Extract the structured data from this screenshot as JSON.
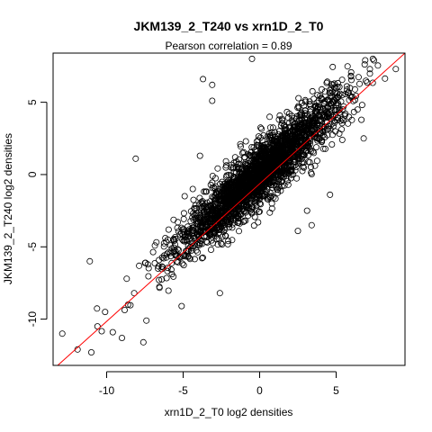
{
  "chart_data": {
    "type": "scatter",
    "title": "JKM139_2_T240 vs xrn1D_2_T0",
    "subtitle": "Pearson correlation =  0.89",
    "xlabel": "xrn1D_2_T0 log2 densities",
    "ylabel": "JKM139_2_T240 log2 densities",
    "xlim": [
      -13.5,
      9.5
    ],
    "ylim": [
      -13.2,
      8.4
    ],
    "xticks": [
      -10,
      -5,
      0,
      5
    ],
    "yticks": [
      -10,
      -5,
      0,
      5
    ],
    "grid": false,
    "point_color": "#000000",
    "fit_line": {
      "color": "#ff0000",
      "x1": -13.2,
      "y1": -13.2,
      "x2": 9.5,
      "y2": 8.4
    },
    "density_model": {
      "n": 2600,
      "seed": 139,
      "mean_x": 0.0,
      "sd_x": 2.6,
      "slope": 0.95,
      "sd_residual": 1.05
    },
    "outliers": [
      [
        -12.9,
        -11.0
      ],
      [
        -11.9,
        -12.1
      ],
      [
        -11.0,
        -12.3
      ],
      [
        -10.6,
        -10.5
      ],
      [
        -10.1,
        -9.5
      ],
      [
        -9.6,
        -10.9
      ],
      [
        -9.0,
        -11.3
      ],
      [
        -8.6,
        -9.0
      ],
      [
        -8.2,
        -8.2
      ],
      [
        -7.6,
        -11.6
      ],
      [
        -7.4,
        -10.1
      ],
      [
        -11.1,
        -6.0
      ],
      [
        -8.1,
        1.1
      ],
      [
        -4.9,
        -1.5
      ],
      [
        -3.9,
        -3.6
      ],
      [
        -3.9,
        1.3
      ],
      [
        -3.1,
        5.1
      ],
      [
        -3.7,
        6.6
      ],
      [
        -3.1,
        6.2
      ],
      [
        -0.9,
        2.3
      ],
      [
        -0.5,
        8.0
      ],
      [
        -1.6,
        1.2
      ],
      [
        3.1,
        -2.5
      ],
      [
        5.4,
        2.4
      ],
      [
        6.8,
        2.5
      ],
      [
        6.4,
        4.5
      ],
      [
        8.9,
        7.3
      ],
      [
        7.4,
        8.0
      ],
      [
        6.9,
        7.9
      ],
      [
        3.4,
        -3.5
      ],
      [
        4.6,
        -1.4
      ],
      [
        2.5,
        -3.9
      ],
      [
        -6.0,
        -4.5
      ],
      [
        -2.6,
        -8.2
      ],
      [
        -5.1,
        -9.1
      ],
      [
        5.7,
        6.1
      ]
    ]
  }
}
